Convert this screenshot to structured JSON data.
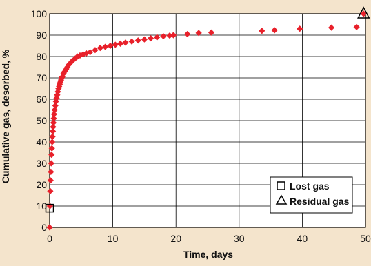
{
  "chart_data": {
    "type": "scatter",
    "xlabel": "Time, days",
    "ylabel": "Cumulative gas, desorbed, %",
    "xlim": [
      0,
      50
    ],
    "ylim": [
      0,
      100
    ],
    "xticks": [
      0,
      10,
      20,
      30,
      40,
      50
    ],
    "yticks": [
      0,
      10,
      20,
      30,
      40,
      50,
      60,
      70,
      80,
      90,
      100
    ],
    "grid": true,
    "legend_position": "bottom-right",
    "colors": {
      "desorbed": "#e8202a",
      "frame": "#000000",
      "grid": "#000000"
    },
    "series": [
      {
        "marker": "diamond",
        "x": [
          0,
          0.05,
          0.1,
          0.15,
          0.2,
          0.25,
          0.3,
          0.35,
          0.4,
          0.45,
          0.5,
          0.55,
          0.6,
          0.65,
          0.7,
          0.8,
          0.9,
          1.0,
          1.1,
          1.2,
          1.3,
          1.4,
          1.5,
          1.6,
          1.7,
          1.8,
          1.9,
          2.0,
          2.2,
          2.4,
          2.6,
          2.8,
          3.0,
          3.3,
          3.6,
          4.0,
          4.4,
          4.8,
          5.3,
          5.8,
          6.4,
          7.2,
          8.0,
          8.8,
          9.6,
          10.4,
          11.2,
          12.0,
          13.0,
          14.0,
          15.0,
          16.0,
          17.0,
          18.0,
          19.0,
          19.6,
          21.8,
          23.6,
          25.6,
          33.6,
          35.6,
          39.6,
          44.6,
          48.6
        ],
        "y": [
          0,
          10,
          17,
          22,
          26,
          30,
          34,
          37,
          40,
          42.5,
          45,
          47,
          49,
          51,
          53,
          55,
          57,
          59,
          60.5,
          62,
          63.5,
          65,
          66,
          67,
          68,
          69,
          70,
          70.5,
          72,
          73,
          74,
          75,
          76,
          77,
          78,
          79,
          80,
          80.5,
          81,
          81.5,
          82,
          83,
          84,
          84.5,
          85,
          85.5,
          86,
          86.5,
          87,
          87.5,
          88,
          88.5,
          89,
          89.5,
          89.8,
          90,
          90.5,
          91,
          91.2,
          92,
          92.3,
          93,
          93.5,
          93.8
        ]
      },
      {
        "name": "Lost gas",
        "marker": "square",
        "x": [
          0
        ],
        "y": [
          9
        ]
      },
      {
        "name": "Residual gas",
        "marker": "triangle",
        "x": [
          49.7
        ],
        "y": [
          100
        ]
      }
    ],
    "highlight_points": [
      {
        "marker": "diamond",
        "x": 49.7,
        "y": 100
      }
    ]
  }
}
